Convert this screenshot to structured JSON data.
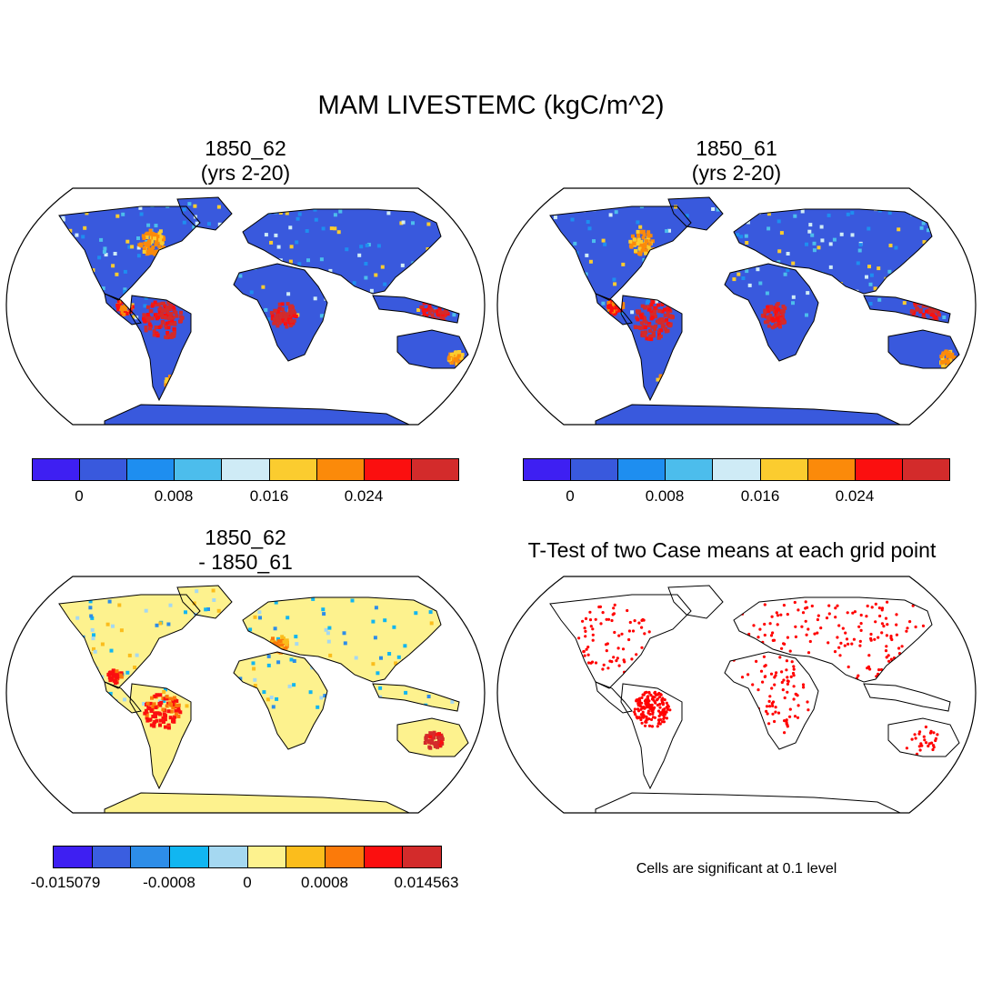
{
  "title": "MAM LIVESTEMC (kgC/m^2)",
  "panels": {
    "top_left": {
      "title_line1": "1850_62",
      "title_line2": "(yrs 2-20)"
    },
    "top_right": {
      "title_line1": "1850_61",
      "title_line2": "(yrs 2-20)"
    },
    "bottom_left": {
      "title_line1": "1850_62",
      "title_line2": "- 1850_61"
    },
    "bottom_right": {
      "title": "T-Test of two Case means at each grid point"
    }
  },
  "colorbars": {
    "absolute": {
      "colors": [
        "#3e1ff2",
        "#3959dd",
        "#1e8ef0",
        "#4cbdec",
        "#cfebf6",
        "#fbcc2f",
        "#fb8a0a",
        "#fb0f0f",
        "#d32b2b"
      ],
      "labels": [
        "0",
        "0.008",
        "0.016",
        "0.024"
      ]
    },
    "difference": {
      "colors": [
        "#3e1ff2",
        "#3a5ee0",
        "#2d8de8",
        "#11b6f1",
        "#a5d8f1",
        "#fdf28e",
        "#fbbd1c",
        "#fb7a0a",
        "#fb0f0f",
        "#d32b2b"
      ],
      "labels": [
        "-0.015079",
        "-0.0008",
        "0",
        "0.0008",
        "0.014563"
      ]
    }
  },
  "significance_note": "Cells are significant at 0.1 level",
  "map_colors": {
    "ocean": "#ffffff",
    "outline": "#000000",
    "significant": "#ff0000"
  }
}
